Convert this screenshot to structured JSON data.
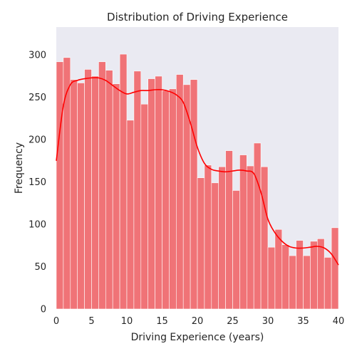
{
  "chart_data": {
    "type": "bar",
    "title": "Distribution of Driving Experience",
    "xlabel": "Driving Experience (years)",
    "ylabel": "Frequency",
    "xlim": [
      0,
      40
    ],
    "ylim": [
      0,
      333
    ],
    "x_ticks": [
      "0",
      "5",
      "10",
      "15",
      "20",
      "25",
      "30",
      "35",
      "40"
    ],
    "y_ticks": [
      "0",
      "50",
      "100",
      "150",
      "200",
      "250",
      "300"
    ],
    "bin_width": 1,
    "bins_start": [
      0,
      1,
      2,
      3,
      4,
      5,
      6,
      7,
      8,
      9,
      10,
      11,
      12,
      13,
      14,
      15,
      16,
      17,
      18,
      19,
      20,
      21,
      22,
      23,
      24,
      25,
      26,
      27,
      28,
      29,
      30,
      31,
      32,
      33,
      34,
      35,
      36,
      37,
      38,
      39
    ],
    "values": [
      292,
      297,
      271,
      267,
      283,
      275,
      292,
      282,
      266,
      301,
      223,
      281,
      242,
      272,
      275,
      258,
      260,
      277,
      265,
      271,
      155,
      170,
      149,
      168,
      187,
      140,
      182,
      169,
      196,
      168,
      73,
      94,
      76,
      63,
      81,
      63,
      80,
      83,
      61,
      96
    ],
    "kde": {
      "x": [
        0,
        1,
        2,
        3,
        4,
        5,
        6,
        7,
        8,
        9,
        10,
        11,
        12,
        13,
        14,
        15,
        16,
        17,
        18,
        19,
        20,
        21,
        22,
        23,
        24,
        25,
        26,
        27,
        28,
        29,
        30,
        31,
        32,
        33,
        34,
        35,
        36,
        37,
        38,
        39,
        40
      ],
      "y": [
        175,
        240,
        265,
        270,
        272,
        273,
        273,
        270,
        264,
        258,
        254,
        256,
        258,
        258,
        259,
        259,
        257,
        253,
        244,
        220,
        191,
        172,
        165,
        163,
        162,
        163,
        164,
        163,
        160,
        138,
        106,
        90,
        80,
        74,
        72,
        72,
        73,
        74,
        72,
        65,
        52
      ]
    },
    "bar_color": "#f07377",
    "kde_color": "#ff0000",
    "plot_background": "#eaeaf2",
    "grid": false
  }
}
